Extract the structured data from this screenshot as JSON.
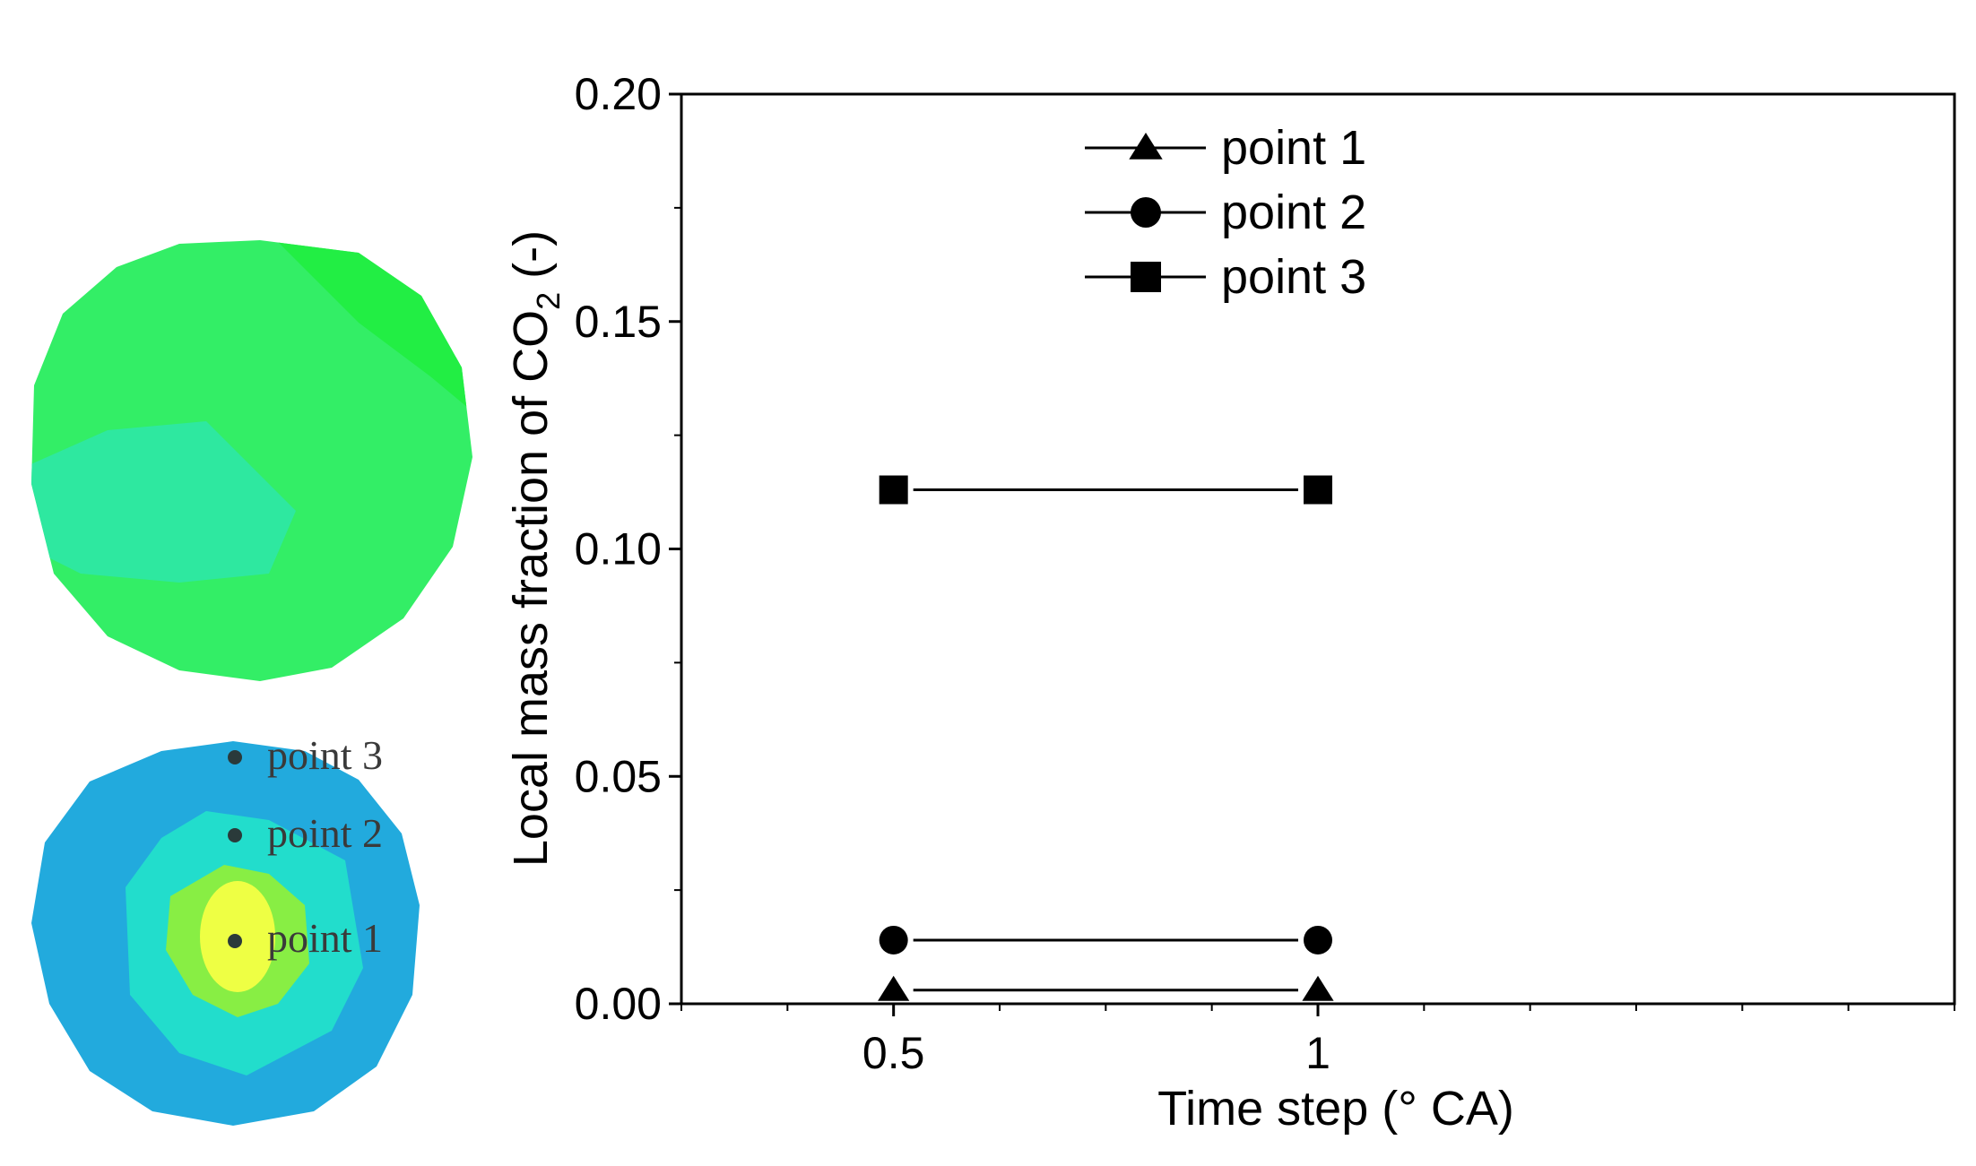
{
  "chart_data": {
    "type": "line",
    "xlabel": "Time step (° CA)",
    "ylabel_main": "Local mass fraction of CO",
    "ylabel_sub": "2",
    "ylabel_unit": " (-)",
    "xlim": [
      0.25,
      1.75
    ],
    "ylim": [
      0.0,
      0.2
    ],
    "x_ticks": [
      0.5,
      1.0
    ],
    "x_tick_labels": [
      "0.5",
      "1"
    ],
    "x_minor_ticks": [
      0.25,
      0.375,
      0.625,
      0.75,
      0.875,
      1.125,
      1.25,
      1.375,
      1.5,
      1.625,
      1.75
    ],
    "y_ticks": [
      0.0,
      0.05,
      0.1,
      0.15,
      0.2
    ],
    "y_tick_labels": [
      "0.00",
      "0.05",
      "0.10",
      "0.15",
      "0.20"
    ],
    "y_minor_ticks": [
      0.025,
      0.075,
      0.125,
      0.175
    ],
    "grid": false,
    "legend_placement": "top-center",
    "series": [
      {
        "name": "point 1",
        "marker": "triangle",
        "x": [
          0.5,
          1.0
        ],
        "values": [
          0.003,
          0.003
        ]
      },
      {
        "name": "point 2",
        "marker": "circle",
        "x": [
          0.5,
          1.0
        ],
        "values": [
          0.014,
          0.014
        ]
      },
      {
        "name": "point 3",
        "marker": "square",
        "x": [
          0.5,
          1.0
        ],
        "values": [
          0.113,
          0.113
        ]
      }
    ]
  },
  "contour_maps": {
    "upper_colors": [
      "#33ee66",
      "#22ee44",
      "#2ee8a0"
    ],
    "lower_colors": [
      "#22aadd",
      "#22ddcc",
      "#88ee44",
      "#eeff44"
    ],
    "labels": [
      "point 3",
      "point 2",
      "point 1"
    ]
  }
}
